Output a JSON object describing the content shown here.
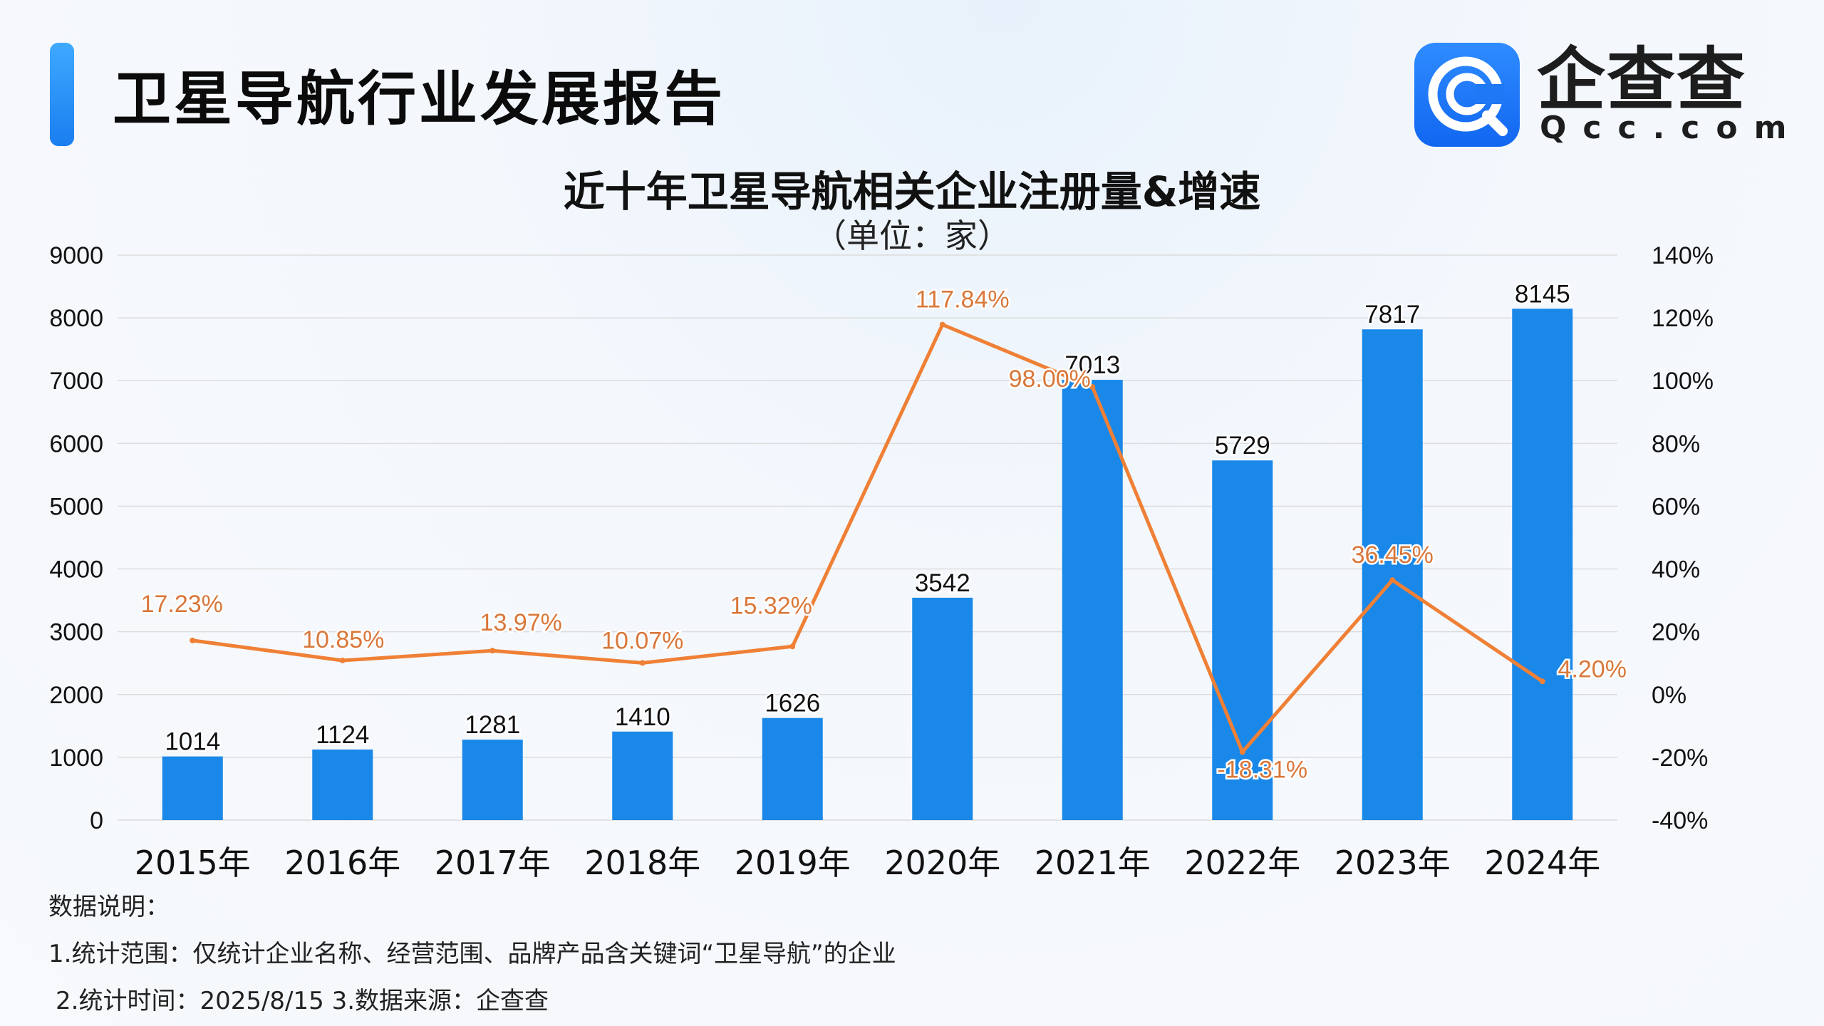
{
  "header": {
    "report_title": "卫星导航行业发展报告",
    "logo_name": "企查查",
    "logo_domain": "Qcc.com"
  },
  "colors": {
    "bar": "#1a88e8",
    "line": "#ef8036",
    "line_label": "#d9773a",
    "brand": "#1a7ef0",
    "grid": "#dcdcdc"
  },
  "chart_data": {
    "type": "bar",
    "title": "近十年卫星导航相关企业注册量&增速",
    "subtitle": "（单位：家）",
    "categories": [
      "2015年",
      "2016年",
      "2017年",
      "2018年",
      "2019年",
      "2020年",
      "2021年",
      "2022年",
      "2023年",
      "2024年"
    ],
    "series": [
      {
        "type": "bar",
        "axis": "left",
        "values": [
          1014,
          1124,
          1281,
          1410,
          1626,
          3542,
          7013,
          5729,
          7817,
          8145
        ],
        "labels": [
          "1014",
          "1124",
          "1281",
          "1410",
          "1626",
          "3542",
          "7013",
          "5729",
          "7817",
          "8145"
        ]
      },
      {
        "type": "line",
        "axis": "right",
        "values": [
          17.23,
          10.85,
          13.97,
          10.07,
          15.32,
          117.84,
          98.0,
          -18.31,
          36.45,
          4.2
        ],
        "labels": [
          "17.23%",
          "10.85%",
          "13.97%",
          "10.07%",
          "15.32%",
          "117.84%",
          "98.00%",
          "-18.31%",
          "36.45%",
          "4.20%"
        ]
      }
    ],
    "y_left": {
      "min": 0,
      "max": 9000,
      "ticks": [
        "0",
        "1000",
        "2000",
        "3000",
        "4000",
        "5000",
        "6000",
        "7000",
        "8000",
        "9000"
      ]
    },
    "y_right": {
      "min": -40,
      "max": 140,
      "ticks": [
        "-40%",
        "-20%",
        "0%",
        "20%",
        "40%",
        "60%",
        "80%",
        "100%",
        "120%",
        "140%"
      ]
    },
    "grid": true,
    "legend": "none"
  },
  "notes": {
    "heading": "数据说明：",
    "line1": "1.统计范围：仅统计企业名称、经营范围、品牌产品含关键词“卫星导航”的企业",
    "line2": "2.统计时间：2025/8/15 3.数据来源：企查查"
  }
}
